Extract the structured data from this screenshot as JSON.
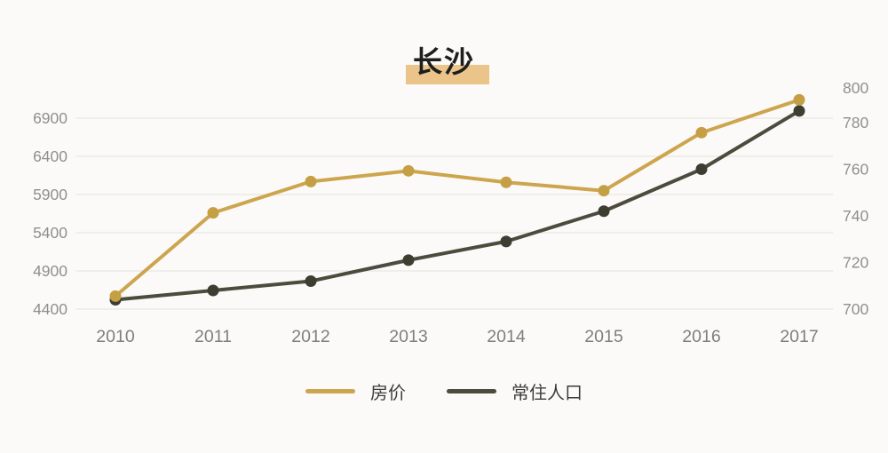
{
  "title": "长沙",
  "chart_data": {
    "type": "line",
    "x": [
      "2010",
      "2011",
      "2012",
      "2013",
      "2014",
      "2015",
      "2016",
      "2017"
    ],
    "series": [
      {
        "name": "房价",
        "axis": "left",
        "color": "#cda54e",
        "point_color": "#c59f44",
        "values": [
          4570,
          5660,
          6070,
          6210,
          6060,
          5950,
          6710,
          7140
        ]
      },
      {
        "name": "常住人口",
        "axis": "right",
        "color": "#4b4c3e",
        "point_color": "#3d3e32",
        "values": [
          704,
          708,
          712,
          721,
          729,
          742,
          760,
          785
        ]
      }
    ],
    "left_axis": {
      "ticks": [
        4400,
        4900,
        5400,
        5900,
        6400,
        6900
      ],
      "min": 4400,
      "step": 500
    },
    "right_axis": {
      "ticks": [
        700,
        720,
        740,
        760,
        780,
        800
      ],
      "min": 700,
      "step": 20
    },
    "grid": true,
    "legend_position": "bottom",
    "title": "长沙"
  },
  "colors": {
    "background": "#fbfaf8",
    "grid": "#ebeae6",
    "left_axis_text": "#8f8f8f",
    "right_axis_text": "#8f8f8f",
    "x_axis_text": "#7e7e7e",
    "legend_text": "#3c3c3c",
    "title_text": "#1e1e1e",
    "title_highlight": "#eac489"
  }
}
